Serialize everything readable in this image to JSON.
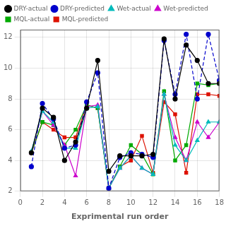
{
  "chart_data": {
    "type": "line",
    "x": [
      1,
      2,
      3,
      4,
      5,
      6,
      7,
      8,
      9,
      10,
      11,
      12,
      13,
      14,
      15,
      16,
      17,
      18
    ],
    "series": [
      {
        "name": "DRY-actual",
        "color": "#000000",
        "marker": "circle",
        "line_style": "solid",
        "values": [
          4.5,
          7.4,
          6.8,
          4.0,
          5.2,
          7.4,
          10.5,
          3.3,
          4.3,
          4.3,
          4.3,
          4.4,
          11.9,
          8.0,
          11.5,
          10.5,
          9.0,
          9.0
        ]
      },
      {
        "name": "DRY-predicted",
        "color": "#0000cc",
        "marker": "circle",
        "line_style": "dashed",
        "values": [
          3.6,
          7.7,
          6.7,
          4.8,
          5.0,
          7.8,
          9.7,
          2.2,
          4.2,
          4.5,
          4.4,
          4.2,
          11.8,
          8.3,
          12.2,
          8.0,
          12.2,
          9.2
        ]
      },
      {
        "name": "Wet-actual",
        "color": "#00bbbb",
        "marker": "triangle",
        "line_style": "solid",
        "values": [
          4.6,
          7.2,
          6.5,
          4.8,
          4.8,
          7.4,
          7.5,
          2.2,
          3.5,
          4.3,
          3.5,
          3.1,
          8.3,
          5.0,
          4.0,
          5.3,
          6.5,
          6.5
        ]
      },
      {
        "name": "Wet-predicted",
        "color": "#cc00cc",
        "marker": "triangle",
        "line_style": "solid",
        "values": [
          4.5,
          7.2,
          6.3,
          5.0,
          3.0,
          7.5,
          7.6,
          2.2,
          3.5,
          4.3,
          3.5,
          3.1,
          8.3,
          5.5,
          4.0,
          6.5,
          5.5,
          6.5
        ]
      },
      {
        "name": "MQL-actual",
        "color": "#00aa00",
        "marker": "square",
        "line_style": "solid",
        "values": [
          4.5,
          6.5,
          6.3,
          5.0,
          6.0,
          7.6,
          7.4,
          2.2,
          3.6,
          5.0,
          4.4,
          3.1,
          8.5,
          4.0,
          5.0,
          9.0,
          8.9,
          9.0
        ]
      },
      {
        "name": "MQL-predicted",
        "color": "#dd1100",
        "marker": "square",
        "line_style": "solid",
        "values": [
          4.5,
          6.5,
          6.0,
          5.5,
          5.5,
          7.6,
          7.4,
          2.2,
          3.6,
          4.0,
          5.6,
          3.2,
          7.8,
          7.0,
          3.2,
          8.3,
          8.3,
          8.2
        ]
      }
    ],
    "xlabel": "Exprimental run order",
    "xlim": [
      0,
      18
    ],
    "xticks": [
      0,
      2,
      4,
      6,
      8,
      10,
      12,
      14,
      16,
      18
    ],
    "ylim": [
      2.0,
      12.5
    ],
    "yticks": [
      2,
      4,
      6,
      8,
      10,
      12
    ],
    "grid": true,
    "legend": "upper left"
  }
}
